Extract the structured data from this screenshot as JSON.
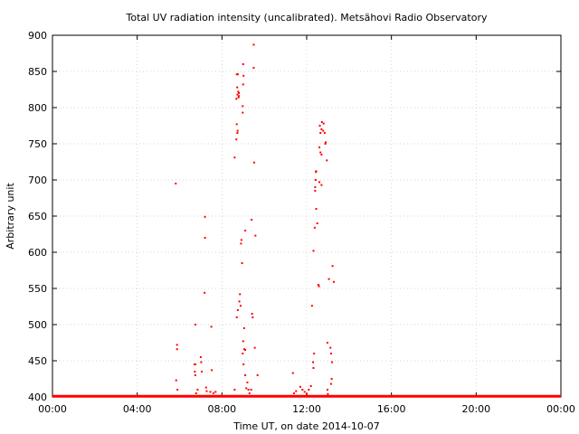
{
  "chart_data": {
    "type": "scatter",
    "title": "Total UV radiation intensity (uncalibrated). Metsähovi Radio Observatory",
    "xlabel": "Time UT, on date 2014-10-07",
    "ylabel": "Arbitrary unit",
    "x_unit": "hours",
    "xlim": [
      0,
      24
    ],
    "ylim": [
      400,
      900
    ],
    "xticks": [
      0,
      4,
      8,
      12,
      16,
      20,
      24
    ],
    "xtick_labels": [
      "00:00",
      "04:00",
      "08:00",
      "12:00",
      "16:00",
      "20:00",
      "00:00"
    ],
    "yticks": [
      400,
      450,
      500,
      550,
      600,
      650,
      700,
      750,
      800,
      850,
      900
    ],
    "ytick_labels": [
      "400",
      "450",
      "500",
      "550",
      "600",
      "650",
      "700",
      "750",
      "800",
      "850",
      "900"
    ],
    "grid": true,
    "marker_color": "#ff0000",
    "baseline": {
      "y": 401,
      "x_start": 0,
      "x_end": 24
    },
    "series": [
      {
        "points": [
          [
            5.82,
            695
          ],
          [
            5.88,
            472
          ],
          [
            5.88,
            466
          ],
          [
            5.84,
            423
          ],
          [
            5.9,
            410
          ],
          [
            6.75,
            500
          ],
          [
            6.7,
            445
          ],
          [
            6.75,
            445
          ],
          [
            6.72,
            435
          ],
          [
            6.74,
            430
          ],
          [
            6.85,
            410
          ],
          [
            6.78,
            405
          ],
          [
            7.0,
            455
          ],
          [
            7.02,
            448
          ],
          [
            7.05,
            435
          ],
          [
            7.2,
            649
          ],
          [
            7.2,
            620
          ],
          [
            7.18,
            544
          ],
          [
            7.25,
            413
          ],
          [
            7.28,
            408
          ],
          [
            7.5,
            497
          ],
          [
            7.52,
            437
          ],
          [
            7.45,
            407
          ],
          [
            7.6,
            405
          ],
          [
            7.7,
            407
          ],
          [
            8.6,
            731
          ],
          [
            8.6,
            410
          ],
          [
            8.7,
            846
          ],
          [
            8.75,
            846
          ],
          [
            8.72,
            828
          ],
          [
            8.73,
            818
          ],
          [
            8.77,
            822
          ],
          [
            8.78,
            814
          ],
          [
            8.68,
            812
          ],
          [
            8.7,
            777
          ],
          [
            8.74,
            768
          ],
          [
            8.73,
            765
          ],
          [
            8.68,
            756
          ],
          [
            8.75,
            520
          ],
          [
            8.7,
            510
          ],
          [
            8.85,
            542
          ],
          [
            8.82,
            532
          ],
          [
            8.88,
            526
          ],
          [
            8.8,
            820
          ],
          [
            8.8,
            816
          ],
          [
            9.0,
            860
          ],
          [
            9.02,
            844
          ],
          [
            9.0,
            832
          ],
          [
            8.98,
            802
          ],
          [
            8.98,
            793
          ],
          [
            8.92,
            617
          ],
          [
            8.9,
            612
          ],
          [
            8.95,
            585
          ],
          [
            9.1,
            630
          ],
          [
            9.05,
            495
          ],
          [
            9.0,
            477
          ],
          [
            9.05,
            466
          ],
          [
            9.1,
            465
          ],
          [
            8.98,
            460
          ],
          [
            9.02,
            445
          ],
          [
            9.1,
            430
          ],
          [
            9.2,
            420
          ],
          [
            9.15,
            412
          ],
          [
            9.25,
            410
          ],
          [
            9.3,
            405
          ],
          [
            9.4,
            645
          ],
          [
            9.42,
            515
          ],
          [
            9.45,
            510
          ],
          [
            9.38,
            410
          ],
          [
            9.5,
            887
          ],
          [
            9.5,
            855
          ],
          [
            9.52,
            724
          ],
          [
            9.58,
            623
          ],
          [
            9.55,
            468
          ],
          [
            9.68,
            430
          ],
          [
            11.35,
            433
          ],
          [
            11.4,
            405
          ],
          [
            11.5,
            408
          ],
          [
            11.7,
            414
          ],
          [
            11.8,
            410
          ],
          [
            11.9,
            407
          ],
          [
            12.0,
            404
          ],
          [
            12.1,
            410
          ],
          [
            12.2,
            415
          ],
          [
            12.35,
            460
          ],
          [
            12.3,
            448
          ],
          [
            12.32,
            440
          ],
          [
            12.25,
            526
          ],
          [
            12.32,
            602
          ],
          [
            12.38,
            634
          ],
          [
            12.4,
            690
          ],
          [
            12.4,
            685
          ],
          [
            12.45,
            712
          ],
          [
            12.43,
            711
          ],
          [
            12.42,
            700
          ],
          [
            12.45,
            660
          ],
          [
            12.5,
            640
          ],
          [
            12.55,
            555
          ],
          [
            12.58,
            553
          ],
          [
            12.6,
            745
          ],
          [
            12.65,
            765
          ],
          [
            12.7,
            770
          ],
          [
            12.62,
            775
          ],
          [
            12.72,
            780
          ],
          [
            12.8,
            778
          ],
          [
            12.78,
            768
          ],
          [
            12.65,
            738
          ],
          [
            12.7,
            735
          ],
          [
            12.6,
            697
          ],
          [
            12.7,
            693
          ],
          [
            12.85,
            765
          ],
          [
            12.9,
            752
          ],
          [
            12.88,
            750
          ],
          [
            12.95,
            727
          ],
          [
            12.98,
            475
          ],
          [
            12.98,
            410
          ],
          [
            13.0,
            404
          ],
          [
            13.05,
            563
          ],
          [
            13.12,
            468
          ],
          [
            13.15,
            460
          ],
          [
            13.2,
            448
          ],
          [
            13.18,
            425
          ],
          [
            13.15,
            418
          ],
          [
            13.22,
            581
          ],
          [
            13.28,
            559
          ]
        ]
      }
    ]
  }
}
